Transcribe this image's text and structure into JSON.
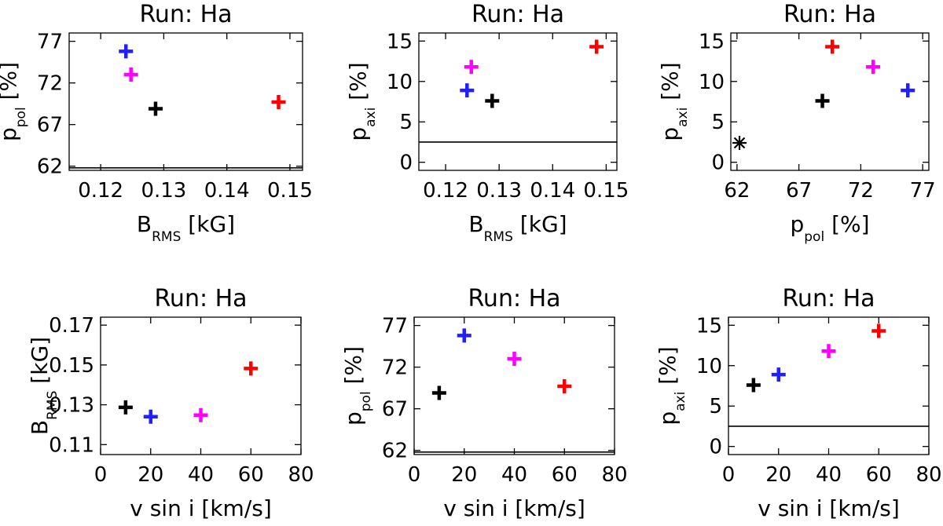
{
  "chart_data": [
    {
      "type": "scatter",
      "title": "Run: Ha",
      "xlabel": "B",
      "xlabel_sub": "RMS",
      "xlabel_unit": "[kG]",
      "ylabel": "p",
      "ylabel_sub": "pol",
      "ylabel_unit": "[%]",
      "xlim": [
        0.115,
        0.152
      ],
      "ylim": [
        61.5,
        78
      ],
      "xticks": [
        "0.12",
        "0.13",
        "0.14",
        "0.15"
      ],
      "yticks": [
        "62",
        "67",
        "72",
        "77"
      ],
      "hline": 61.8,
      "points": [
        {
          "x": 0.124,
          "y": 75.8,
          "color": "#1f1fff",
          "marker": "plus"
        },
        {
          "x": 0.1248,
          "y": 73.0,
          "color": "#ff00ff",
          "marker": "plus"
        },
        {
          "x": 0.1287,
          "y": 68.9,
          "color": "#000000",
          "marker": "plus"
        },
        {
          "x": 0.1482,
          "y": 69.7,
          "color": "#ff0000",
          "marker": "plus"
        }
      ]
    },
    {
      "type": "scatter",
      "title": "Run: Ha",
      "xlabel": "B",
      "xlabel_sub": "RMS",
      "xlabel_unit": "[kG]",
      "ylabel": "p",
      "ylabel_sub": "axi",
      "ylabel_unit": "[%]",
      "xlim": [
        0.115,
        0.152
      ],
      "ylim": [
        -1,
        16
      ],
      "xticks": [
        "0.12",
        "0.13",
        "0.14",
        "0.15"
      ],
      "yticks": [
        "0",
        "5",
        "10",
        "15"
      ],
      "hline": 2.5,
      "points": [
        {
          "x": 0.124,
          "y": 8.9,
          "color": "#1f1fff",
          "marker": "plus"
        },
        {
          "x": 0.1248,
          "y": 11.8,
          "color": "#ff00ff",
          "marker": "plus"
        },
        {
          "x": 0.1287,
          "y": 7.6,
          "color": "#000000",
          "marker": "plus"
        },
        {
          "x": 0.1482,
          "y": 14.3,
          "color": "#ff0000",
          "marker": "plus"
        }
      ]
    },
    {
      "type": "scatter",
      "title": "Run: Ha",
      "xlabel": "p",
      "xlabel_sub": "pol",
      "xlabel_unit": "[%]",
      "ylabel": "p",
      "ylabel_sub": "axi",
      "ylabel_unit": "[%]",
      "xlim": [
        61.5,
        77.5
      ],
      "ylim": [
        -1,
        16
      ],
      "xticks": [
        "62",
        "67",
        "72",
        "77"
      ],
      "yticks": [
        "0",
        "5",
        "10",
        "15"
      ],
      "points": [
        {
          "x": 62.2,
          "y": 2.4,
          "color": "#000000",
          "marker": "asterisk"
        },
        {
          "x": 68.9,
          "y": 7.6,
          "color": "#000000",
          "marker": "plus"
        },
        {
          "x": 69.7,
          "y": 14.3,
          "color": "#ff0000",
          "marker": "plus"
        },
        {
          "x": 73.0,
          "y": 11.8,
          "color": "#ff00ff",
          "marker": "plus"
        },
        {
          "x": 75.8,
          "y": 8.9,
          "color": "#1f1fff",
          "marker": "plus"
        }
      ]
    },
    {
      "type": "scatter",
      "title": "Run: Ha",
      "xlabel": "v sin i [km/s]",
      "ylabel": "B",
      "ylabel_sub": "RMS",
      "ylabel_unit": "[kG]",
      "xlim": [
        0,
        80
      ],
      "ylim": [
        0.105,
        0.174
      ],
      "xticks": [
        "0",
        "20",
        "40",
        "60",
        "80"
      ],
      "yticks": [
        "0.11",
        "0.13",
        "0.15",
        "0.17"
      ],
      "points": [
        {
          "x": 10,
          "y": 0.1287,
          "color": "#000000",
          "marker": "plus"
        },
        {
          "x": 20,
          "y": 0.124,
          "color": "#1f1fff",
          "marker": "plus"
        },
        {
          "x": 40,
          "y": 0.1248,
          "color": "#ff00ff",
          "marker": "plus"
        },
        {
          "x": 60,
          "y": 0.1482,
          "color": "#ff0000",
          "marker": "plus"
        }
      ]
    },
    {
      "type": "scatter",
      "title": "Run: Ha",
      "xlabel": "v sin i [km/s]",
      "ylabel": "p",
      "ylabel_sub": "pol",
      "ylabel_unit": "[%]",
      "xlim": [
        0,
        80
      ],
      "ylim": [
        61.5,
        78
      ],
      "xticks": [
        "0",
        "20",
        "40",
        "60",
        "80"
      ],
      "yticks": [
        "62",
        "67",
        "72",
        "77"
      ],
      "hline": 61.8,
      "points": [
        {
          "x": 10,
          "y": 68.9,
          "color": "#000000",
          "marker": "plus"
        },
        {
          "x": 20,
          "y": 75.8,
          "color": "#1f1fff",
          "marker": "plus"
        },
        {
          "x": 40,
          "y": 73.0,
          "color": "#ff00ff",
          "marker": "plus"
        },
        {
          "x": 60,
          "y": 69.7,
          "color": "#ff0000",
          "marker": "plus"
        }
      ]
    },
    {
      "type": "scatter",
      "title": "Run: Ha",
      "xlabel": "v sin i [km/s]",
      "ylabel": "p",
      "ylabel_sub": "axi",
      "ylabel_unit": "[%]",
      "xlim": [
        0,
        80
      ],
      "ylim": [
        -1,
        16
      ],
      "xticks": [
        "0",
        "20",
        "40",
        "60",
        "80"
      ],
      "yticks": [
        "0",
        "5",
        "10",
        "15"
      ],
      "hline": 2.5,
      "points": [
        {
          "x": 10,
          "y": 7.6,
          "color": "#000000",
          "marker": "plus"
        },
        {
          "x": 20,
          "y": 8.9,
          "color": "#1f1fff",
          "marker": "plus"
        },
        {
          "x": 40,
          "y": 11.8,
          "color": "#ff00ff",
          "marker": "plus"
        },
        {
          "x": 60,
          "y": 14.3,
          "color": "#ff0000",
          "marker": "plus"
        }
      ]
    }
  ]
}
